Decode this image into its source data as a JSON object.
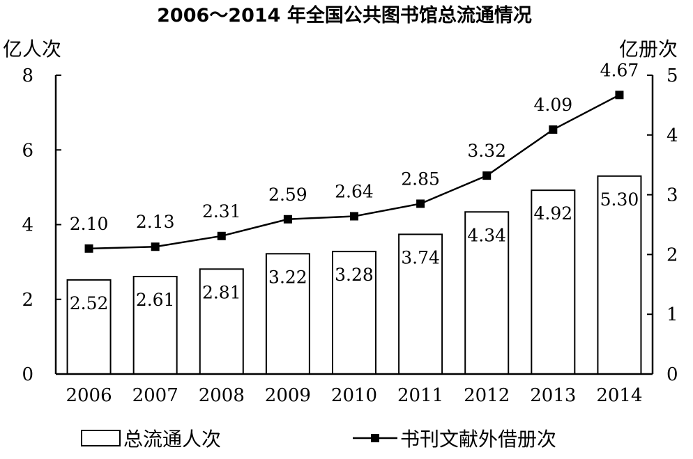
{
  "chart_data": {
    "type": "bar",
    "title": "2006～2014 年全国公共图书馆总流通情况",
    "left_unit": "亿人次",
    "right_unit": "亿册次",
    "categories": [
      "2006",
      "2007",
      "2008",
      "2009",
      "2010",
      "2011",
      "2012",
      "2013",
      "2014"
    ],
    "left_axis": {
      "ylim": [
        0,
        8
      ],
      "ticks": [
        "0",
        "2",
        "4",
        "6",
        "8"
      ]
    },
    "right_axis": {
      "ylim": [
        0,
        5
      ],
      "ticks": [
        "0",
        "1",
        "2",
        "3",
        "4",
        "5"
      ]
    },
    "series": [
      {
        "name": "总流通人次",
        "type": "bar",
        "axis": "left",
        "values": [
          2.52,
          2.61,
          2.81,
          3.22,
          3.28,
          3.74,
          4.34,
          4.92,
          5.3
        ],
        "labels": [
          "2.52",
          "2.61",
          "2.81",
          "3.22",
          "3.28",
          "3.74",
          "4.34",
          "4.92",
          "5.30"
        ]
      },
      {
        "name": "书刊文献外借册次",
        "type": "line",
        "axis": "right",
        "values": [
          2.1,
          2.13,
          2.31,
          2.59,
          2.64,
          2.85,
          3.32,
          4.09,
          4.67
        ],
        "labels": [
          "2.10",
          "2.13",
          "2.31",
          "2.59",
          "2.64",
          "2.85",
          "3.32",
          "4.09",
          "4.67"
        ]
      }
    ],
    "legend_position": "bottom"
  }
}
